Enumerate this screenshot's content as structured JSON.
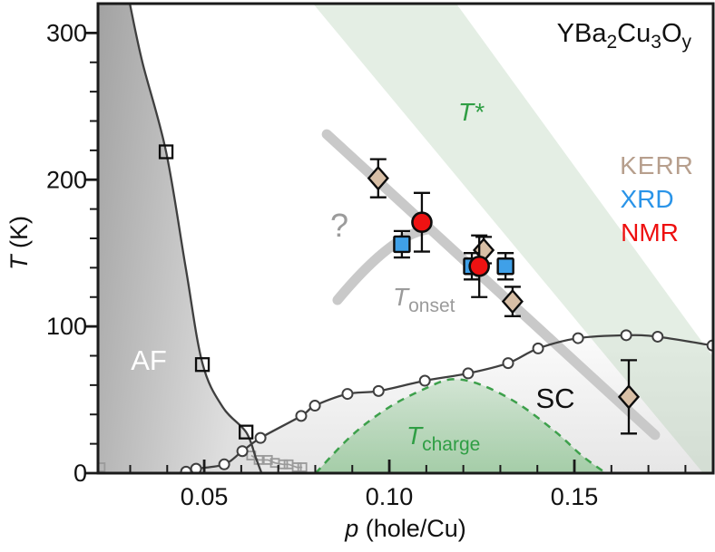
{
  "figure": {
    "title_parts": {
      "t1": "YBa",
      "s1": "2",
      "t2": "Cu",
      "s2": "3",
      "t3": "O",
      "s3": "y"
    },
    "legend": {
      "kerr": "KERR",
      "xrd": "XRD",
      "nmr": "NMR"
    },
    "labels": {
      "t_star_main": "T",
      "t_star_sup": "*",
      "question": "?",
      "t_onset_main": "T",
      "t_onset_sub": "onset",
      "af": "AF",
      "sc": "SC",
      "t_charge_main": "T",
      "t_charge_sub": "charge",
      "xlabel_italic": "p",
      "xlabel_rest": " (hole/Cu)",
      "ylabel_italic": "T",
      "ylabel_rest": " (K)"
    },
    "colors": {
      "kerr_fill": "#d8bfa6",
      "kerr_text": "#b79f8d",
      "xrd_fill": "#3fa0e8",
      "xrd_text": "#2a94e8",
      "nmr_fill": "#ee1212",
      "nmr_text": "#ee0f0f",
      "green_text": "#2f9e44",
      "t_charge_stroke": "#3da04b",
      "t_star_band_fill": "rgba(173,204,173,0.33)",
      "onset_line": "#c9c9c9",
      "gray_text": "#9b9b9b",
      "curve_stroke": "#3f3f3f",
      "marker_stroke": "#0d0d0d",
      "frame": "#1a1a1a",
      "af_fill_dark": "#a2a2a2",
      "af_fill_light": "#dfdfdf",
      "sc_fill_top": "#fbfbfb",
      "sc_fill_bottom": "#e6e6e6",
      "t_charge_fill_top": "rgba(125,190,130,0.28)",
      "t_charge_fill_bottom": "rgba(125,190,130,0.62)",
      "gray_square_stroke": "#9a9a9a"
    }
  },
  "chart_data": {
    "type": "scatter",
    "title": "YBa2Cu3Oy phase diagram",
    "xlabel": "p (hole/Cu)",
    "ylabel": "T (K)",
    "xlim": [
      0.0213,
      0.1875
    ],
    "ylim": [
      0,
      320
    ],
    "grid": false,
    "x_ticks": {
      "major": [
        0.05,
        0.1,
        0.15
      ],
      "labels": [
        "0.05",
        "0.10",
        "0.15"
      ],
      "minor_from": 0.03,
      "minor_to": 0.18,
      "minor_step": 0.01
    },
    "y_ticks": {
      "major": [
        0,
        100,
        200,
        300
      ],
      "labels": [
        "0",
        "100",
        "200",
        "300"
      ],
      "minor_step": 20,
      "minor_max": 310
    },
    "series": [
      {
        "name": "KERR",
        "marker": "diamond",
        "points": [
          {
            "p": 0.097,
            "T": 201,
            "err": 13
          },
          {
            "p": 0.1255,
            "T": 152,
            "err": 9
          },
          {
            "p": 0.1333,
            "T": 117,
            "err": 10
          },
          {
            "p": 0.1647,
            "T": 52,
            "err": 25
          }
        ]
      },
      {
        "name": "XRD",
        "marker": "square",
        "points": [
          {
            "p": 0.1034,
            "T": 156,
            "err": 9
          },
          {
            "p": 0.1223,
            "T": 141,
            "err": 9
          },
          {
            "p": 0.1314,
            "T": 141,
            "err": 9
          }
        ]
      },
      {
        "name": "NMR",
        "marker": "circle",
        "points": [
          {
            "p": 0.1088,
            "T": 171,
            "err": 20
          },
          {
            "p": 0.1243,
            "T": 141,
            "err": 21
          }
        ]
      }
    ],
    "regions": {
      "af_line": [
        [
          0.0299,
          320
        ],
        [
          0.0333,
          280
        ],
        [
          0.0397,
          219
        ],
        [
          0.045,
          140
        ],
        [
          0.0495,
          75
        ],
        [
          0.055,
          45
        ],
        [
          0.0613,
          28
        ],
        [
          0.064,
          10
        ],
        [
          0.0655,
          0
        ]
      ],
      "af_squares": [
        [
          0.0397,
          219
        ],
        [
          0.0495,
          74
        ],
        [
          0.0613,
          28
        ]
      ],
      "sc_dome": [
        [
          0.0426,
          0
        ],
        [
          0.0451,
          1
        ],
        [
          0.0478,
          3
        ],
        [
          0.0554,
          6
        ],
        [
          0.0603,
          15
        ],
        [
          0.0652,
          24
        ],
        [
          0.0762,
          39
        ],
        [
          0.0799,
          46
        ],
        [
          0.0887,
          54
        ],
        [
          0.0971,
          56
        ],
        [
          0.1096,
          63
        ],
        [
          0.1213,
          68
        ],
        [
          0.1321,
          75
        ],
        [
          0.1402,
          85
        ],
        [
          0.151,
          92
        ],
        [
          0.164,
          94
        ],
        [
          0.1725,
          93
        ],
        [
          0.1873,
          87
        ]
      ],
      "gray_squares": [
        [
          0.022,
          4
        ],
        [
          0.0627,
          12
        ],
        [
          0.0647,
          9
        ],
        [
          0.0672,
          9
        ],
        [
          0.0691,
          7
        ],
        [
          0.0713,
          6
        ],
        [
          0.0728,
          6
        ],
        [
          0.075,
          4
        ],
        [
          0.0765,
          4
        ]
      ],
      "t_charge": [
        [
          0.0801,
          0
        ],
        [
          0.09,
          26
        ],
        [
          0.1,
          45
        ],
        [
          0.11,
          58
        ],
        [
          0.117,
          64
        ],
        [
          0.125,
          60
        ],
        [
          0.135,
          47
        ],
        [
          0.145,
          28
        ],
        [
          0.152,
          12
        ],
        [
          0.1585,
          0
        ]
      ],
      "t_star_band": [
        [
          0.0794,
          320
        ],
        [
          0.1181,
          320
        ],
        [
          0.2103,
          0
        ],
        [
          0.1848,
          0
        ]
      ],
      "t_onset_line": [
        [
          0.0831,
          231
        ],
        [
          0.1718,
          26
        ]
      ],
      "t_onset_branch": {
        "start": [
          0.086,
          118
        ],
        "ctrl": [
          0.1005,
          162
        ],
        "end": [
          0.11,
          166
        ]
      }
    }
  }
}
